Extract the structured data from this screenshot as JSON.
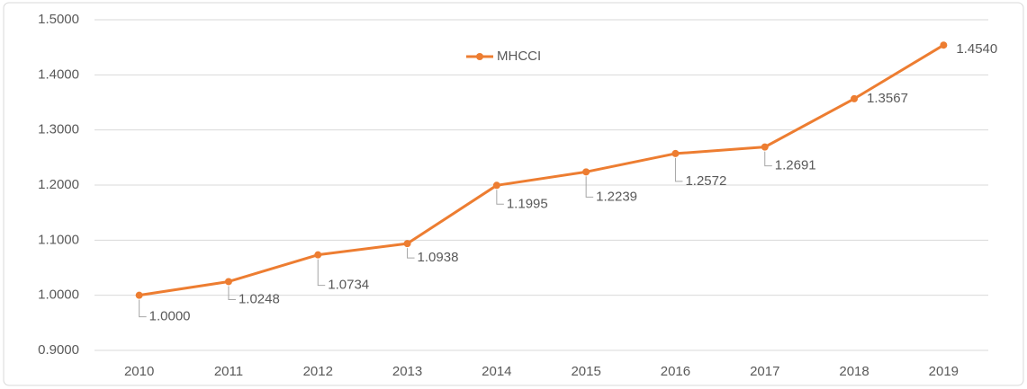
{
  "chart_data": {
    "type": "line",
    "categories": [
      "2010",
      "2011",
      "2012",
      "2013",
      "2014",
      "2015",
      "2016",
      "2017",
      "2018",
      "2019"
    ],
    "series": [
      {
        "name": "MHCCI",
        "color": "#ed7d31",
        "values": [
          1.0,
          1.0248,
          1.0734,
          1.0938,
          1.1995,
          1.2239,
          1.2572,
          1.2691,
          1.3567,
          1.454
        ],
        "value_labels": [
          "1.0000",
          "1.0248",
          "1.0734",
          "1.0938",
          "1.1995",
          "1.2239",
          "1.2572",
          "1.2691",
          "1.3567",
          "1.4540"
        ]
      }
    ],
    "ylim": [
      0.9,
      1.5
    ],
    "yticks": [
      {
        "value": 0.9,
        "label": "0.9000"
      },
      {
        "value": 1.0,
        "label": "1.0000"
      },
      {
        "value": 1.1,
        "label": "1.1000"
      },
      {
        "value": 1.2,
        "label": "1.2000"
      },
      {
        "value": 1.3,
        "label": "1.3000"
      },
      {
        "value": 1.4,
        "label": "1.4000"
      },
      {
        "value": 1.5,
        "label": "1.5000"
      }
    ],
    "grid": true,
    "legend": "top"
  }
}
